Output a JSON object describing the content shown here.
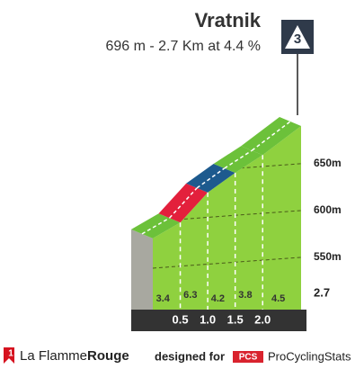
{
  "title": "Vratnik",
  "subtitle": "696 m - 2.7 Km at 4.4 %",
  "category": "3",
  "chart_data": {
    "type": "climb-profile",
    "x": [
      0,
      0.5,
      1.0,
      1.5,
      2.0,
      2.7
    ],
    "elevations": [
      576,
      593,
      625,
      646,
      665,
      696
    ],
    "xlim": [
      0,
      2.7
    ],
    "xticks": [
      0.5,
      {
        "value": 1,
        "label": "1.0"
      },
      1.5,
      {
        "value": 2,
        "label": "2.0"
      },
      2.7
    ],
    "ylim": [
      500,
      720
    ],
    "yticks": [
      {
        "value": 550,
        "label": "550m"
      },
      {
        "value": 600,
        "label": "600m"
      },
      {
        "value": 650,
        "label": "650m"
      }
    ],
    "gradients": [
      3.4,
      6.3,
      4.2,
      3.8,
      4.5
    ],
    "gradient_colors": [
      "#6cc13a",
      "#e3203c",
      "#1d5a8e",
      "#6cc13a",
      "#6cc13a"
    ],
    "body_color": "#8fd13f",
    "grid": true
  },
  "footer": {
    "brand_light": "La Flamme",
    "brand_bold": "Rouge",
    "designed_for": "designed for",
    "badge": "PCS",
    "site": "ProCyclingStats"
  }
}
